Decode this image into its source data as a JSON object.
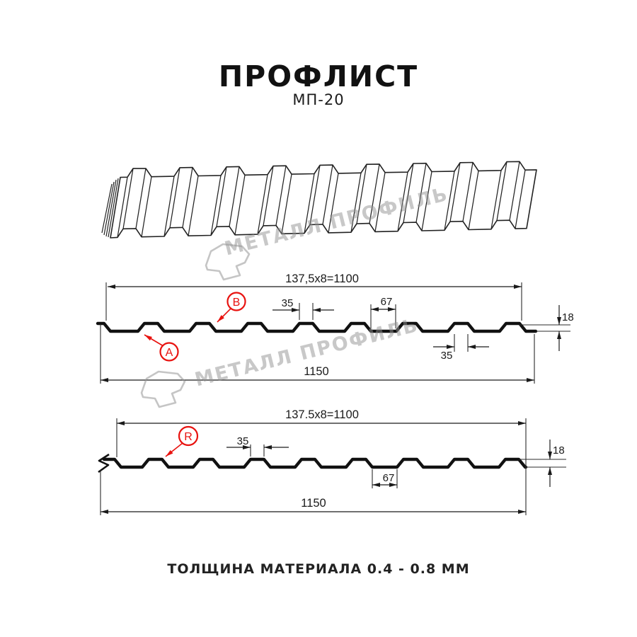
{
  "header": {
    "title": "ПРОФЛИСТ",
    "subtitle": "МП-20"
  },
  "watermark": {
    "text": "МЕТАЛЛ ПРОФИЛЬ"
  },
  "d1": {
    "module": "137,5x8=1100",
    "crest_top": "35",
    "valley": "67",
    "height": "18",
    "crest_bottom": "35",
    "overall": "1150",
    "label_a": "A",
    "label_b": "B"
  },
  "d2": {
    "module": "137.5x8=1100",
    "crest": "35",
    "valley": "67",
    "height": "18",
    "overall": "1150",
    "label_r": "R"
  },
  "footer": {
    "text": "ТОЛЩИНА МАТЕРИАЛА 0.4 - 0.8 ММ"
  },
  "colors": {
    "accent_red": "#e8120f",
    "watermark_gray": "#c8c8c8",
    "line_black": "#1a1a1a"
  }
}
